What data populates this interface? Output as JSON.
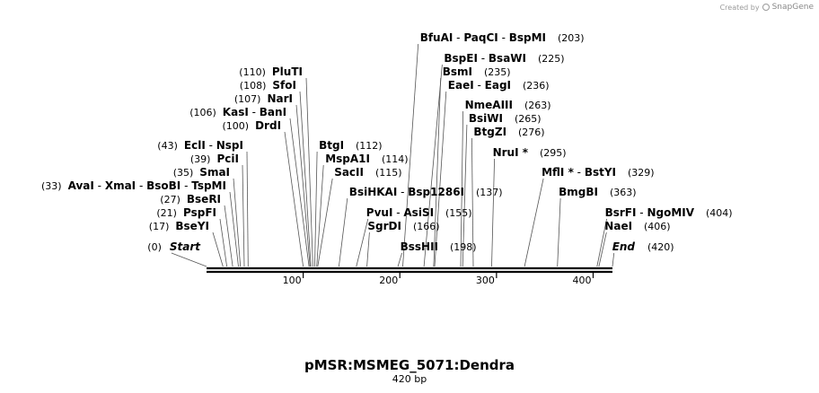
{
  "credit": {
    "created_by": "Created by",
    "brand": "SnapGene",
    "logo_icon": "snapgene-logo-icon"
  },
  "title": "pMSR:MSMEG_5071:Dendra",
  "subtitle": "420 bp",
  "chart_data": {
    "type": "restriction-map",
    "length_bp": 420,
    "axis_ticks": [
      100,
      200,
      300,
      400
    ],
    "sites": [
      {
        "parts": [
          "BfuAI",
          "PaqCI",
          "BspMI"
        ],
        "pos": 203
      },
      {
        "parts": [
          "BspEI",
          "BsaWI"
        ],
        "pos": 225
      },
      {
        "parts": [
          "BsmI"
        ],
        "pos": 235
      },
      {
        "parts": [
          "EaeI",
          "EagI"
        ],
        "pos": 236
      },
      {
        "parts": [
          "PluTI"
        ],
        "pos": 110
      },
      {
        "parts": [
          "SfoI"
        ],
        "pos": 108
      },
      {
        "parts": [
          "NarI"
        ],
        "pos": 107
      },
      {
        "parts": [
          "KasI",
          "BanI"
        ],
        "pos": 106
      },
      {
        "parts": [
          "DrdI"
        ],
        "pos": 100
      },
      {
        "parts": [
          "NmeAIII"
        ],
        "pos": 263
      },
      {
        "parts": [
          "BsiWI"
        ],
        "pos": 265
      },
      {
        "parts": [
          "BtgZI"
        ],
        "pos": 276
      },
      {
        "parts": [
          "EclI",
          "NspI"
        ],
        "pos": 43
      },
      {
        "parts": [
          "BtgI"
        ],
        "pos": 112
      },
      {
        "parts": [
          "PciI"
        ],
        "pos": 39
      },
      {
        "parts": [
          "MspA1I"
        ],
        "pos": 114
      },
      {
        "parts": [
          "NruI *"
        ],
        "pos": 295
      },
      {
        "parts": [
          "SmaI"
        ],
        "pos": 35
      },
      {
        "parts": [
          "SacII"
        ],
        "pos": 115
      },
      {
        "parts": [
          "MflI *",
          "BstYI"
        ],
        "pos": 329
      },
      {
        "parts": [
          "AvaI",
          "XmaI",
          "BsoBI",
          "TspMI"
        ],
        "pos": 33
      },
      {
        "parts": [
          "BsiHKAI",
          "Bsp1286I"
        ],
        "pos": 137
      },
      {
        "parts": [
          "BmgBI"
        ],
        "pos": 363
      },
      {
        "parts": [
          "BseRI"
        ],
        "pos": 27
      },
      {
        "parts": [
          "PspFI"
        ],
        "pos": 21
      },
      {
        "parts": [
          "PvuI",
          "AsiSI"
        ],
        "pos": 155
      },
      {
        "parts": [
          "BsrFI",
          "NgoMIV"
        ],
        "pos": 404
      },
      {
        "parts": [
          "BseYI"
        ],
        "pos": 17
      },
      {
        "parts": [
          "SgrDI"
        ],
        "pos": 166
      },
      {
        "parts": [
          "NaeI"
        ],
        "pos": 406
      },
      {
        "parts": [
          "Start"
        ],
        "pos": 0
      },
      {
        "parts": [
          "BssHII"
        ],
        "pos": 198
      },
      {
        "parts": [
          "End"
        ],
        "pos": 420
      }
    ]
  }
}
